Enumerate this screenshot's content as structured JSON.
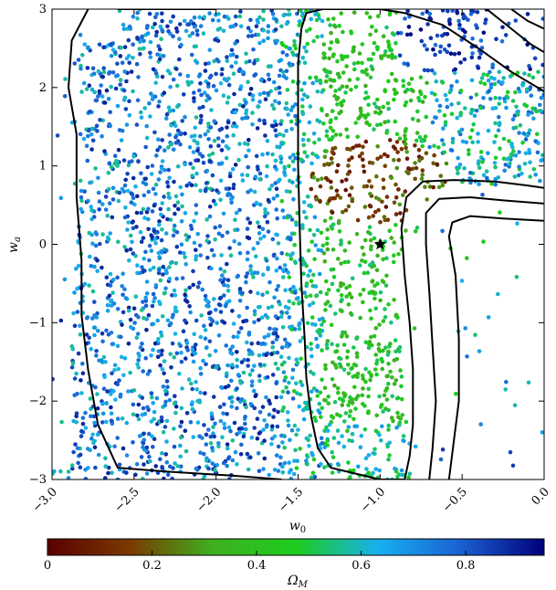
{
  "chart_data": {
    "type": "scatter",
    "xlabel": "w_0",
    "ylabel": "w_a",
    "xlim": [
      -3.0,
      0.0
    ],
    "ylim": [
      -3,
      3
    ],
    "x_ticks": [
      "−3.0",
      "−2.5",
      "−2.0",
      "−1.5",
      "−1.0",
      "−0.5",
      "0.0"
    ],
    "y_ticks": [
      "−3",
      "−2",
      "−1",
      "0",
      "1",
      "2",
      "3"
    ],
    "grid": false,
    "marker": {
      "x": -1.0,
      "y": 0.0,
      "symbol": "star",
      "color": "#000000"
    },
    "colorbar": {
      "label": "Ω_M",
      "range": [
        0,
        0.95
      ],
      "ticks": [
        "0",
        "0.2",
        "0.4",
        "0.6",
        "0.8"
      ],
      "stops": [
        "#5a0000",
        "#7a3a00",
        "#3fb020",
        "#1ecc1e",
        "#18b0f0",
        "#1a5fd0",
        "#00007a"
      ]
    },
    "contours": [
      {
        "name": "outer",
        "points": [
          [
            -2.78,
            3.0
          ],
          [
            -2.88,
            2.6
          ],
          [
            -2.9,
            2.0
          ],
          [
            -2.85,
            1.4
          ],
          [
            -2.85,
            0.6
          ],
          [
            -2.82,
            -0.2
          ],
          [
            -2.82,
            -0.9
          ],
          [
            -2.78,
            -1.6
          ],
          [
            -2.72,
            -2.3
          ],
          [
            -2.6,
            -2.85
          ],
          [
            -2.3,
            -2.9
          ],
          [
            -1.9,
            -2.95
          ],
          [
            -1.6,
            -3.0
          ]
        ]
      },
      {
        "name": "outer-top",
        "points": [
          [
            -2.6,
            3.0
          ],
          [
            -2.2,
            3.0
          ],
          [
            -2.0,
            3.0
          ]
        ]
      },
      {
        "name": "inner",
        "points": [
          [
            -1.48,
            2.75
          ],
          [
            -1.5,
            2.3
          ],
          [
            -1.5,
            1.6
          ],
          [
            -1.5,
            1.0
          ],
          [
            -1.49,
            0.2
          ],
          [
            -1.48,
            -0.5
          ],
          [
            -1.46,
            -1.2
          ],
          [
            -1.45,
            -1.7
          ],
          [
            -1.42,
            -2.2
          ],
          [
            -1.38,
            -2.6
          ],
          [
            -1.3,
            -2.85
          ],
          [
            -1.0,
            -3.0
          ],
          [
            -0.85,
            -3.0
          ]
        ]
      },
      {
        "name": "inner-top",
        "points": [
          [
            -1.48,
            2.75
          ],
          [
            -1.45,
            2.95
          ],
          [
            -1.35,
            3.0
          ],
          [
            -1.0,
            3.0
          ],
          [
            -0.85,
            2.95
          ],
          [
            -0.62,
            2.8
          ],
          [
            -0.4,
            2.5
          ],
          [
            -0.2,
            2.2
          ],
          [
            0.0,
            1.95
          ]
        ]
      },
      {
        "name": "right-1",
        "points": [
          [
            -0.85,
            -3.0
          ],
          [
            -0.82,
            -2.7
          ],
          [
            -0.8,
            -2.3
          ],
          [
            -0.8,
            -1.6
          ],
          [
            -0.82,
            -1.0
          ],
          [
            -0.85,
            -0.4
          ],
          [
            -0.87,
            0.2
          ],
          [
            -0.84,
            0.6
          ],
          [
            -0.74,
            0.8
          ],
          [
            -0.55,
            0.82
          ],
          [
            -0.3,
            0.8
          ],
          [
            -0.1,
            0.75
          ],
          [
            0.0,
            0.72
          ]
        ]
      },
      {
        "name": "right-2",
        "points": [
          [
            -0.7,
            -3.0
          ],
          [
            -0.68,
            -2.6
          ],
          [
            -0.66,
            -2.0
          ],
          [
            -0.68,
            -1.3
          ],
          [
            -0.7,
            -0.6
          ],
          [
            -0.72,
            0.0
          ],
          [
            -0.72,
            0.4
          ],
          [
            -0.64,
            0.58
          ],
          [
            -0.45,
            0.6
          ],
          [
            -0.25,
            0.56
          ],
          [
            0.0,
            0.52
          ]
        ]
      },
      {
        "name": "right-3",
        "points": [
          [
            -0.58,
            -3.0
          ],
          [
            -0.55,
            -2.5
          ],
          [
            -0.52,
            -2.0
          ],
          [
            -0.52,
            -1.2
          ],
          [
            -0.54,
            -0.4
          ],
          [
            -0.58,
            0.1
          ],
          [
            -0.56,
            0.28
          ],
          [
            -0.45,
            0.36
          ],
          [
            -0.25,
            0.33
          ],
          [
            0.0,
            0.3
          ]
        ]
      },
      {
        "name": "top-right-1",
        "points": [
          [
            -0.35,
            3.0
          ],
          [
            -0.2,
            2.75
          ],
          [
            -0.08,
            2.55
          ],
          [
            0.0,
            2.45
          ]
        ]
      },
      {
        "name": "top-right-2",
        "points": [
          [
            -0.2,
            3.0
          ],
          [
            -0.1,
            2.85
          ],
          [
            0.0,
            2.75
          ]
        ]
      }
    ]
  }
}
